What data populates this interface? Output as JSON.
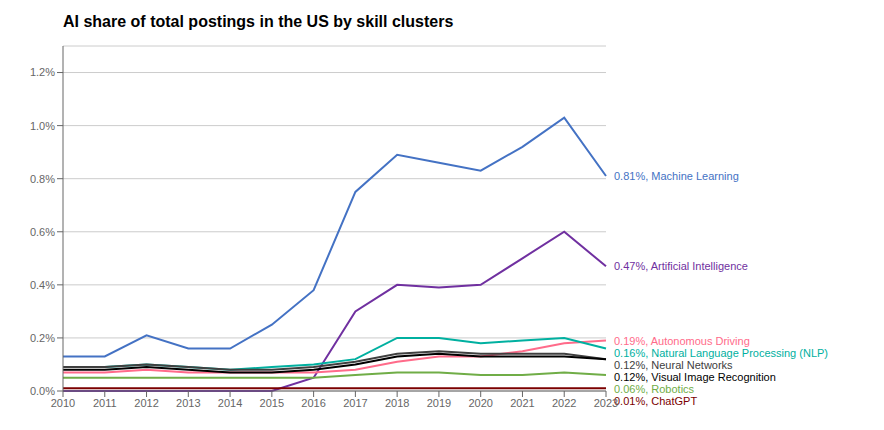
{
  "chart_data": {
    "type": "line",
    "title": "AI share of total postings in the US by skill clusters",
    "x": [
      2010,
      2011,
      2012,
      2013,
      2014,
      2015,
      2016,
      2017,
      2018,
      2019,
      2020,
      2021,
      2022,
      2023
    ],
    "xlim": [
      2010,
      2023
    ],
    "xticks": [
      2010,
      2011,
      2012,
      2013,
      2014,
      2015,
      2016,
      2017,
      2018,
      2019,
      2020,
      2021,
      2022,
      2023
    ],
    "ylim": [
      0,
      0.013
    ],
    "yticks": [
      {
        "value": 0.0,
        "label": "0.0%"
      },
      {
        "value": 0.002,
        "label": "0.2%"
      },
      {
        "value": 0.004,
        "label": "0.4%"
      },
      {
        "value": 0.006,
        "label": "0.6%"
      },
      {
        "value": 0.008,
        "label": "0.8%"
      },
      {
        "value": 0.01,
        "label": "1.0%"
      },
      {
        "value": 0.012,
        "label": "1.2%"
      }
    ],
    "grid": true,
    "series": [
      {
        "name": "0.81%, Machine Learning",
        "color": "#4472C4",
        "values": [
          0.0013,
          0.0013,
          0.0021,
          0.0016,
          0.0016,
          0.0025,
          0.0038,
          0.0075,
          0.0089,
          0.0086,
          0.0083,
          0.0092,
          0.0103,
          0.0081
        ]
      },
      {
        "name": "0.47%, Artificial Intelligence",
        "color": "#7030A0",
        "values": [
          0.0,
          0.0,
          0.0,
          0.0,
          0.0,
          0.0,
          0.0005,
          0.003,
          0.004,
          0.0039,
          0.004,
          0.005,
          0.006,
          0.0047
        ]
      },
      {
        "name": "0.19%, Autonomous Driving",
        "color": "#FF6B8A",
        "values": [
          0.0007,
          0.0007,
          0.0008,
          0.0007,
          0.0007,
          0.0007,
          0.0007,
          0.0008,
          0.0011,
          0.0013,
          0.0013,
          0.0015,
          0.0018,
          0.0019
        ]
      },
      {
        "name": "0.16%, Natural Language Processing (NLP)",
        "color": "#00B0A0",
        "values": [
          0.0009,
          0.0009,
          0.001,
          0.0009,
          0.0008,
          0.0009,
          0.001,
          0.0012,
          0.002,
          0.002,
          0.0018,
          0.0019,
          0.002,
          0.0016
        ]
      },
      {
        "name": "0.12%, Neural Networks",
        "color": "#404040",
        "values": [
          0.0009,
          0.0009,
          0.001,
          0.0009,
          0.0008,
          0.0008,
          0.0009,
          0.0011,
          0.0014,
          0.0015,
          0.0014,
          0.0014,
          0.0014,
          0.0012
        ]
      },
      {
        "name": "0.12%, Visual Image Recognition",
        "color": "#000000",
        "values": [
          0.0008,
          0.0008,
          0.0009,
          0.0008,
          0.0007,
          0.0007,
          0.0008,
          0.001,
          0.0013,
          0.0014,
          0.0013,
          0.0013,
          0.0013,
          0.0012
        ]
      },
      {
        "name": "0.06%, Robotics",
        "color": "#70AD47",
        "values": [
          0.0005,
          0.0005,
          0.0005,
          0.0005,
          0.0005,
          0.0005,
          0.0005,
          0.0006,
          0.0007,
          0.0007,
          0.0006,
          0.0006,
          0.0007,
          0.0006
        ]
      },
      {
        "name": "0.01%, ChatGPT",
        "color": "#7B0000",
        "values": [
          0.0001,
          0.0001,
          0.0001,
          0.0001,
          0.0001,
          0.0001,
          0.0001,
          0.0001,
          0.0001,
          0.0001,
          0.0001,
          0.0001,
          0.0001,
          0.0001
        ]
      }
    ]
  }
}
